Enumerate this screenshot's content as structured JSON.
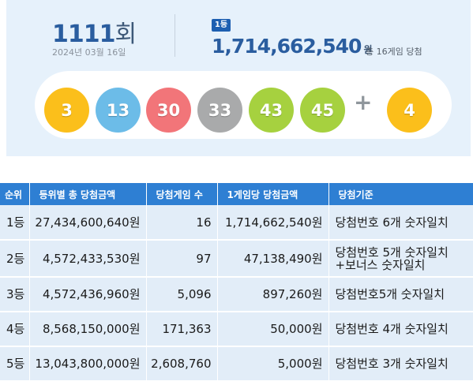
{
  "draw": {
    "round_number": "1111",
    "round_unit": "회",
    "date": "2024년 03월 16일",
    "first_prize_badge": "1등",
    "first_prize_amount": "1,714,662,540",
    "first_prize_unit": "원",
    "winner_summary": "총 16게임 당첨"
  },
  "numbers": {
    "balls": [
      {
        "value": "3",
        "color": "#fbbf1b"
      },
      {
        "value": "13",
        "color": "#6cbce8"
      },
      {
        "value": "30",
        "color": "#f27579"
      },
      {
        "value": "33",
        "color": "#a9aaab"
      },
      {
        "value": "43",
        "color": "#a6d13f"
      },
      {
        "value": "45",
        "color": "#a6d13f"
      }
    ],
    "plus_symbol": "+",
    "bonus": {
      "value": "4",
      "color": "#fbbf1b"
    }
  },
  "table": {
    "headers": [
      "순위",
      "등위별 총 당첨금액",
      "당첨게임 수",
      "1게임당 당첨금액",
      "당첨기준"
    ],
    "rows": [
      {
        "rank": "1등",
        "total": "27,434,600,640원",
        "games": "16",
        "per_game": "1,714,662,540원",
        "criteria": "당첨번호 6개 숫자일치",
        "criteria_extra": ""
      },
      {
        "rank": "2등",
        "total": "4,572,433,530원",
        "games": "97",
        "per_game": "47,138,490원",
        "criteria": "당첨번호 5개 숫자일치",
        "criteria_extra": "+보너스 숫자일치"
      },
      {
        "rank": "3등",
        "total": "4,572,436,960원",
        "games": "5,096",
        "per_game": "897,260원",
        "criteria": "당첨번호5개 숫자일치",
        "criteria_extra": ""
      },
      {
        "rank": "4등",
        "total": "8,568,150,000원",
        "games": "171,363",
        "per_game": "50,000원",
        "criteria": "당첨번호 4개 숫자일치",
        "criteria_extra": ""
      },
      {
        "rank": "5등",
        "total": "13,043,800,000원",
        "games": "2,608,760",
        "per_game": "5,000원",
        "criteria": "당첨번호 3개 숫자일치",
        "criteria_extra": ""
      }
    ]
  }
}
